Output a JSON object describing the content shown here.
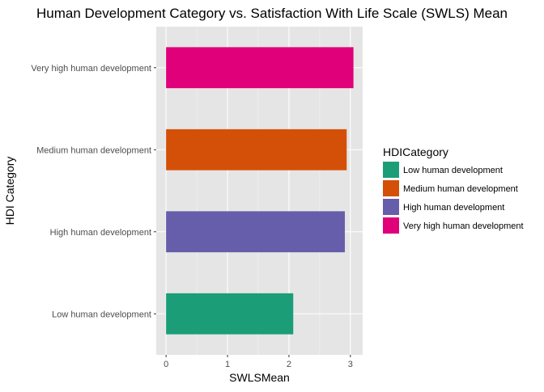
{
  "chart_data": {
    "type": "bar",
    "orientation": "horizontal",
    "title": "Human Development Category vs. Satisfaction With Life Scale (SWLS) Mean",
    "xlabel": "SWLSMean",
    "ylabel": "HDI Category",
    "categories": [
      "Low human development",
      "High human development",
      "Medium human development",
      "Very high human development"
    ],
    "values": [
      2.07,
      2.91,
      2.94,
      3.05
    ],
    "colors": [
      "#1b9e77",
      "#665eaa",
      "#d45008",
      "#e0007a"
    ],
    "xlim": [
      -0.16,
      3.2
    ],
    "xticks": [
      0,
      1,
      2,
      3
    ],
    "grid": true,
    "legend": {
      "title": "HDICategory",
      "position": "right",
      "items": [
        {
          "label": "Low human development",
          "color": "#1b9e77"
        },
        {
          "label": "Medium human development",
          "color": "#d45008"
        },
        {
          "label": "High human development",
          "color": "#665eaa"
        },
        {
          "label": "Very high human development",
          "color": "#e0007a"
        }
      ]
    }
  }
}
